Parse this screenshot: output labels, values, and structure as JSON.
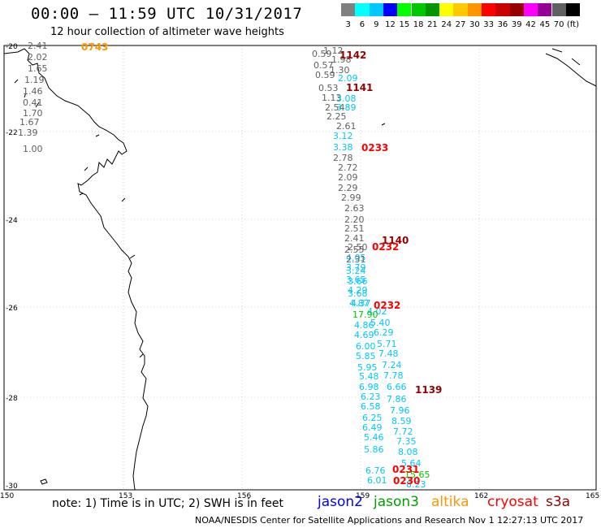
{
  "header": {
    "title": "00:00 — 11:59 UTC 10/31/2017",
    "subtitle": "12 hour collection of altimeter wave heights"
  },
  "scale": {
    "colors": [
      "#808080",
      "#00ffff",
      "#00c8ff",
      "#0000ff",
      "#00ff00",
      "#00c800",
      "#009600",
      "#ffff00",
      "#ffc800",
      "#ff9600",
      "#ff0000",
      "#c80000",
      "#960000",
      "#ff00ff",
      "#960096",
      "#606060",
      "#000000"
    ],
    "labels": [
      "3",
      "6",
      "9",
      "12",
      "15",
      "18",
      "21",
      "24",
      "27",
      "30",
      "33",
      "36",
      "39",
      "42",
      "45",
      "70",
      "(ft)"
    ]
  },
  "axes": {
    "lon_labels": [
      "150",
      "153",
      "156",
      "159",
      "162",
      "165"
    ],
    "lat_labels": [
      "-20",
      "-22",
      "-24",
      "-26",
      "-28",
      "-30"
    ]
  },
  "track_times": [
    {
      "text": "0743",
      "color": "#ff9600"
    },
    {
      "text": "1142",
      "color": "#960000"
    },
    {
      "text": "1141",
      "color": "#960000"
    },
    {
      "text": "0233",
      "color": "#ff0000"
    },
    {
      "text": "1140",
      "color": "#960000"
    },
    {
      "text": "0232",
      "color": "#ff0000"
    },
    {
      "text": "0232",
      "color": "#ff0000"
    },
    {
      "text": "1139",
      "color": "#960000"
    },
    {
      "text": "0231",
      "color": "#ff0000"
    },
    {
      "text": "0230",
      "color": "#ff0000"
    }
  ],
  "wave_values": [
    {
      "text": "2.41",
      "color": "#606060"
    },
    {
      "text": "2.02",
      "color": "#606060"
    },
    {
      "text": "1.65",
      "color": "#606060"
    },
    {
      "text": "1.19",
      "color": "#606060"
    },
    {
      "text": "1.46",
      "color": "#606060"
    },
    {
      "text": "0.41",
      "color": "#606060"
    },
    {
      "text": "1.70",
      "color": "#606060"
    },
    {
      "text": "1.67",
      "color": "#606060"
    },
    {
      "text": "1.39",
      "color": "#606060"
    },
    {
      "text": "1.00",
      "color": "#606060"
    },
    {
      "text": "1.12",
      "color": "#606060"
    },
    {
      "text": "0.59",
      "color": "#606060"
    },
    {
      "text": "1.98",
      "color": "#606060"
    },
    {
      "text": "0.57",
      "color": "#606060"
    },
    {
      "text": "1.30",
      "color": "#606060"
    },
    {
      "text": "0.59",
      "color": "#606060"
    },
    {
      "text": "2.09",
      "color": "#00c8ff"
    },
    {
      "text": "0.53",
      "color": "#606060"
    },
    {
      "text": "1.13",
      "color": "#606060"
    },
    {
      "text": "3.08",
      "color": "#00c8ff"
    },
    {
      "text": "2.54",
      "color": "#606060"
    },
    {
      "text": "3.89",
      "color": "#00c8ff"
    },
    {
      "text": "2.25",
      "color": "#606060"
    },
    {
      "text": "2.61",
      "color": "#606060"
    },
    {
      "text": "3.12",
      "color": "#00c8ff"
    },
    {
      "text": "3.38",
      "color": "#00c8ff"
    },
    {
      "text": "2.78",
      "color": "#606060"
    },
    {
      "text": "2.72",
      "color": "#606060"
    },
    {
      "text": "2.09",
      "color": "#606060"
    },
    {
      "text": "2.29",
      "color": "#606060"
    },
    {
      "text": "2.99",
      "color": "#606060"
    },
    {
      "text": "2.63",
      "color": "#606060"
    },
    {
      "text": "2.20",
      "color": "#606060"
    },
    {
      "text": "2.51",
      "color": "#606060"
    },
    {
      "text": "2.41",
      "color": "#606060"
    },
    {
      "text": "2.50",
      "color": "#606060"
    },
    {
      "text": "2.55",
      "color": "#606060"
    },
    {
      "text": "4.05",
      "color": "#00c8ff"
    },
    {
      "text": "2.31",
      "color": "#606060"
    },
    {
      "text": "3.79",
      "color": "#00c8ff"
    },
    {
      "text": "3.24",
      "color": "#00c8ff"
    },
    {
      "text": "3.65",
      "color": "#00c8ff"
    },
    {
      "text": "3.66",
      "color": "#00c8ff"
    },
    {
      "text": "4.29",
      "color": "#00c8ff"
    },
    {
      "text": "3.68",
      "color": "#00c8ff"
    },
    {
      "text": "4.87",
      "color": "#00c8ff"
    },
    {
      "text": "4.37",
      "color": "#00c8ff"
    },
    {
      "text": "4.02",
      "color": "#00c8ff"
    },
    {
      "text": "17.90",
      "color": "#00c800"
    },
    {
      "text": "5.40",
      "color": "#00c8ff"
    },
    {
      "text": "4.86",
      "color": "#00c8ff"
    },
    {
      "text": "6.29",
      "color": "#00c8ff"
    },
    {
      "text": "4.69",
      "color": "#00c8ff"
    },
    {
      "text": "5.71",
      "color": "#00c8ff"
    },
    {
      "text": "6.00",
      "color": "#00c8ff"
    },
    {
      "text": "7.48",
      "color": "#00c8ff"
    },
    {
      "text": "5.85",
      "color": "#00c8ff"
    },
    {
      "text": "7.24",
      "color": "#00c8ff"
    },
    {
      "text": "5.95",
      "color": "#00c8ff"
    },
    {
      "text": "7.78",
      "color": "#00c8ff"
    },
    {
      "text": "5.48",
      "color": "#00c8ff"
    },
    {
      "text": "6.66",
      "color": "#00c8ff"
    },
    {
      "text": "6.98",
      "color": "#00c8ff"
    },
    {
      "text": "7.86",
      "color": "#00c8ff"
    },
    {
      "text": "6.23",
      "color": "#00c8ff"
    },
    {
      "text": "7.96",
      "color": "#00c8ff"
    },
    {
      "text": "6.58",
      "color": "#00c8ff"
    },
    {
      "text": "8.59",
      "color": "#00c8ff"
    },
    {
      "text": "6.25",
      "color": "#00c8ff"
    },
    {
      "text": "7.72",
      "color": "#00c8ff"
    },
    {
      "text": "6.49",
      "color": "#00c8ff"
    },
    {
      "text": "7.35",
      "color": "#00c8ff"
    },
    {
      "text": "5.46",
      "color": "#00c8ff"
    },
    {
      "text": "8.08",
      "color": "#00c8ff"
    },
    {
      "text": "5.86",
      "color": "#00c8ff"
    },
    {
      "text": "5.64",
      "color": "#00c8ff"
    },
    {
      "text": "6.76",
      "color": "#00c8ff"
    },
    {
      "text": "15.65",
      "color": "#00c800"
    },
    {
      "text": "6.01",
      "color": "#00c8ff"
    },
    {
      "text": "8.23",
      "color": "#00c8ff"
    },
    {
      "text": "6.19",
      "color": "#00c8ff"
    },
    {
      "text": "12.05",
      "color": "#00ff00"
    },
    {
      "text": "6.21",
      "color": "#00ff00"
    }
  ],
  "note": "note:  1) Time is in UTC;  2) SWH is in feet",
  "legend": [
    {
      "name": "jason2",
      "color": "#0000ff"
    },
    {
      "name": "jason3",
      "color": "#00a000"
    },
    {
      "name": "altika",
      "color": "#ff9600"
    },
    {
      "name": "cryosat",
      "color": "#ff0000"
    },
    {
      "name": "s3a",
      "color": "#960000"
    }
  ],
  "footer": "NOAA/NESDIS Center for Satellite Applications and Research   Nov  1 12:27:13 UTC 2017"
}
